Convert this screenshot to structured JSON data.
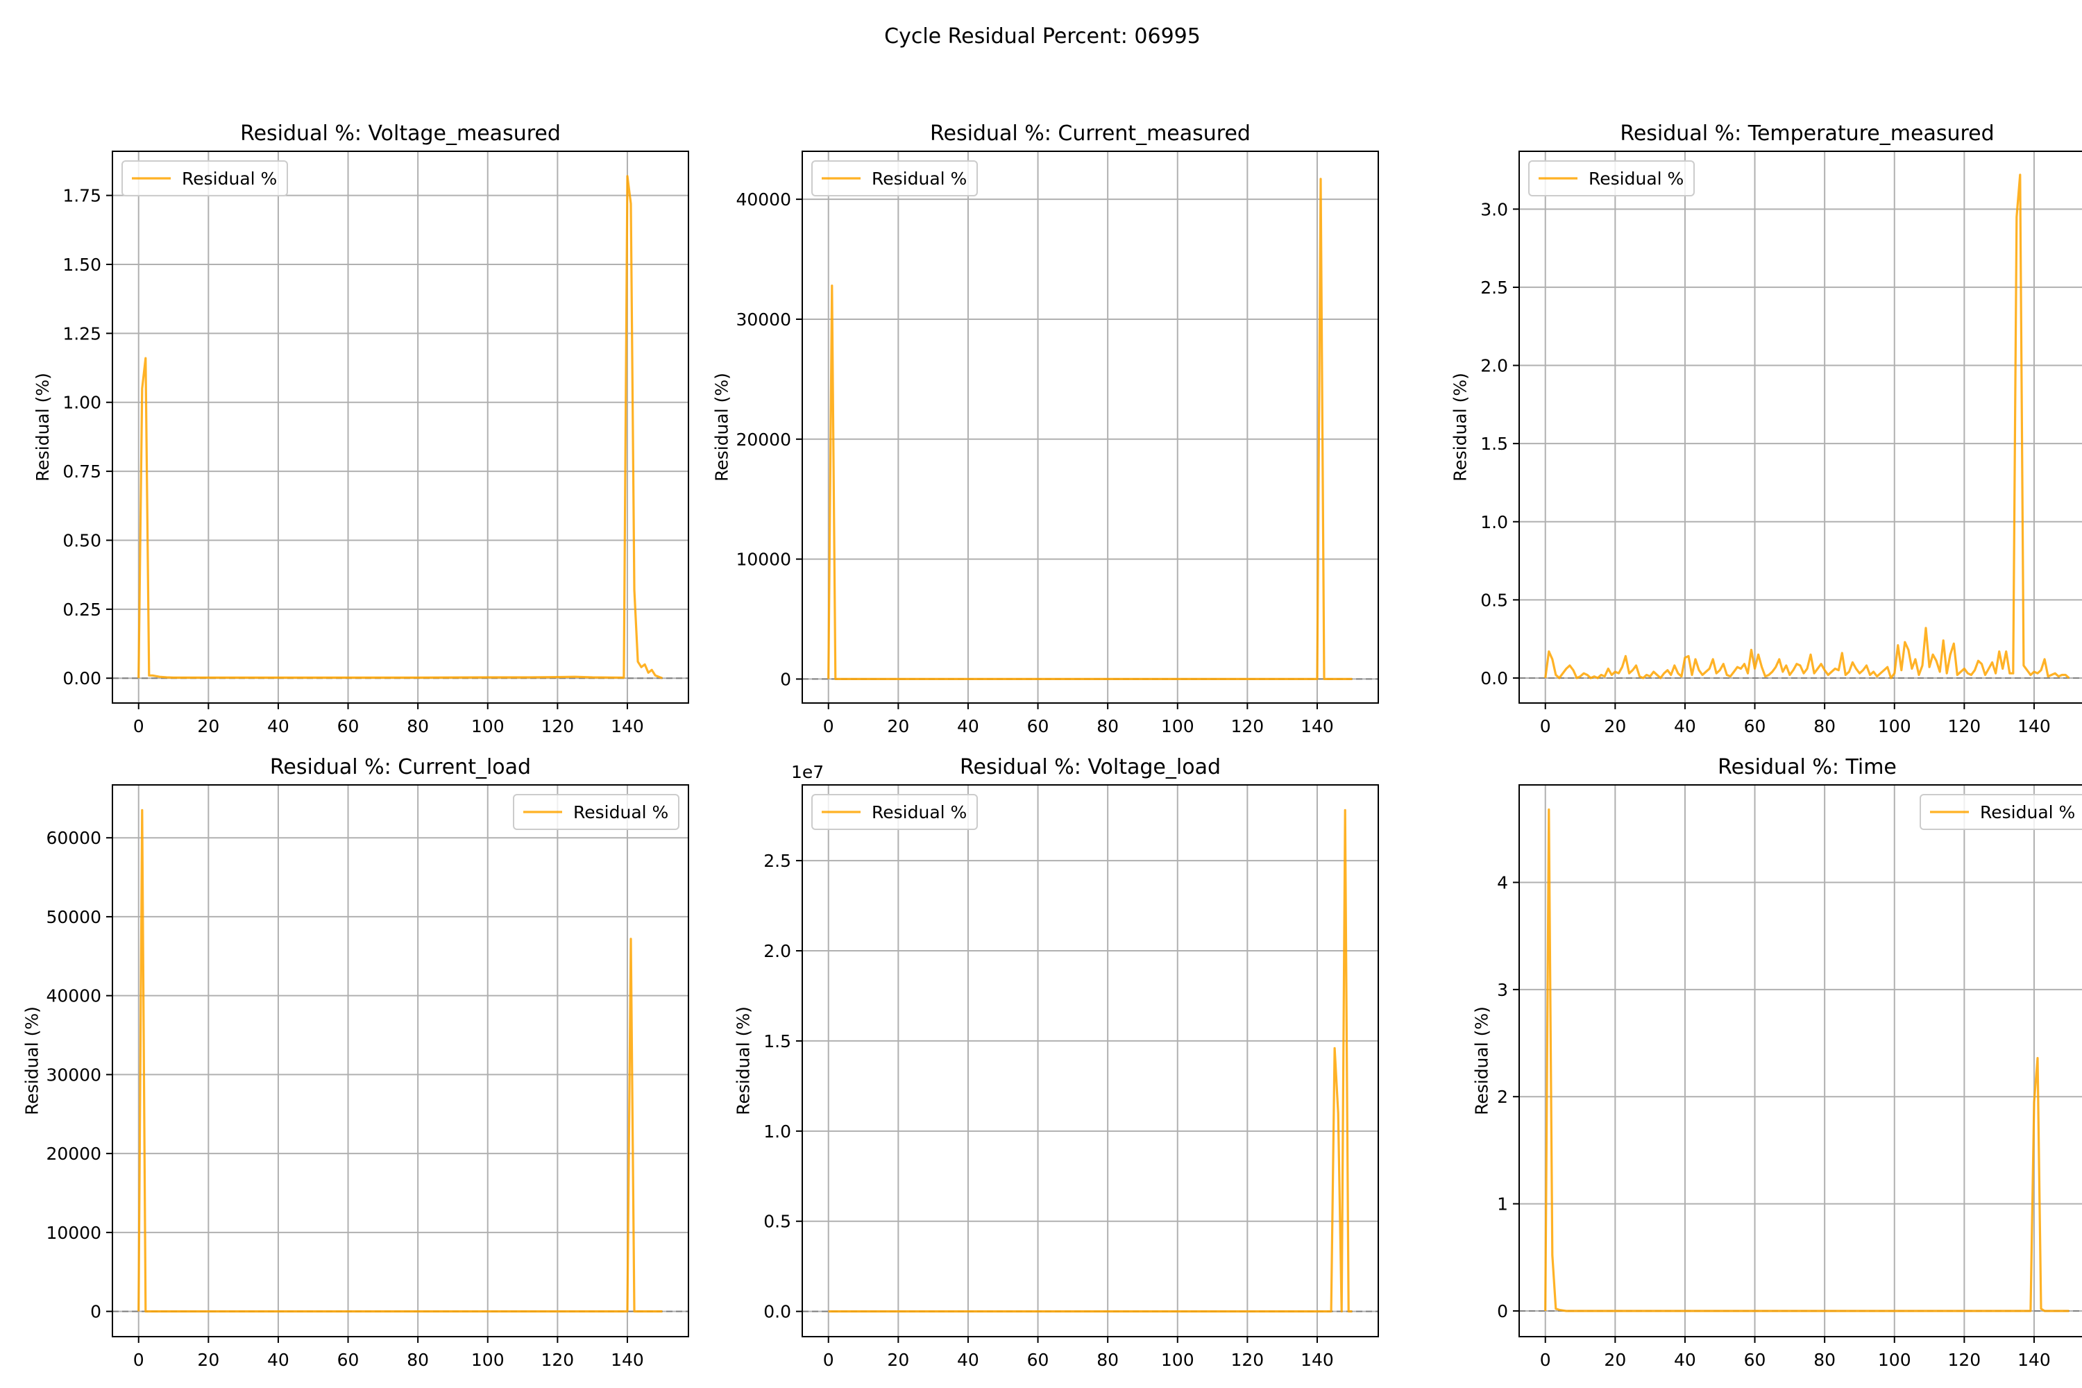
{
  "figure": {
    "suptitle": "Cycle Residual Percent: 06995",
    "line_color": "#FFA500",
    "zero_line_color": "#808080",
    "grid_color": "#B0B0B0"
  },
  "chart_data": [
    {
      "type": "line",
      "title": "Residual %: Voltage_measured",
      "xlabel": "",
      "ylabel": "Residual (%)",
      "legend": "top-left",
      "grid": true,
      "xlim": [
        -7.5,
        157.5
      ],
      "ylim": [
        -0.09,
        1.91
      ],
      "x_ticks": [
        0,
        20,
        40,
        60,
        80,
        100,
        120,
        140
      ],
      "y_ticks": [
        0.0,
        0.25,
        0.5,
        0.75,
        1.0,
        1.25,
        1.5,
        1.75
      ],
      "y_tick_labels": [
        "0.00",
        "0.25",
        "0.50",
        "0.75",
        "1.00",
        "1.25",
        "1.50",
        "1.75"
      ],
      "y_offset_label": "",
      "series": [
        {
          "name": "Residual %",
          "x": [
            0,
            1,
            2,
            3,
            4,
            6,
            8,
            10,
            20,
            40,
            60,
            80,
            100,
            110,
            120,
            125,
            130,
            139,
            140,
            141,
            142,
            143,
            144,
            145,
            146,
            147,
            148,
            149,
            150
          ],
          "y": [
            0.0,
            1.05,
            1.16,
            0.01,
            0.01,
            0.005,
            0.003,
            0.002,
            0.002,
            0.002,
            0.002,
            0.002,
            0.003,
            0.003,
            0.004,
            0.005,
            0.003,
            0.002,
            1.82,
            1.72,
            0.32,
            0.06,
            0.04,
            0.05,
            0.02,
            0.03,
            0.01,
            0.005,
            0.0
          ]
        }
      ]
    },
    {
      "type": "line",
      "title": "Residual %: Current_measured",
      "xlabel": "",
      "ylabel": "Residual (%)",
      "legend": "top-left",
      "grid": true,
      "xlim": [
        -7.5,
        157.5
      ],
      "ylim": [
        -2000,
        44000
      ],
      "x_ticks": [
        0,
        20,
        40,
        60,
        80,
        100,
        120,
        140
      ],
      "y_ticks": [
        0,
        10000,
        20000,
        30000,
        40000
      ],
      "y_tick_labels": [
        "0",
        "10000",
        "20000",
        "30000",
        "40000"
      ],
      "y_offset_label": "",
      "series": [
        {
          "name": "Residual %",
          "x": [
            0,
            1,
            2,
            3,
            10,
            40,
            80,
            120,
            140,
            141,
            142,
            143,
            145,
            150
          ],
          "y": [
            0,
            32800,
            0,
            0,
            0,
            0,
            0,
            0,
            0,
            41700,
            0,
            0,
            0,
            0
          ]
        }
      ]
    },
    {
      "type": "line",
      "title": "Residual %: Temperature_measured",
      "xlabel": "",
      "ylabel": "Residual (%)",
      "legend": "top-left",
      "grid": true,
      "xlim": [
        -7.5,
        157.5
      ],
      "ylim": [
        -0.16,
        3.37
      ],
      "x_ticks": [
        0,
        20,
        40,
        60,
        80,
        100,
        120,
        140
      ],
      "y_ticks": [
        0.0,
        0.5,
        1.0,
        1.5,
        2.0,
        2.5,
        3.0
      ],
      "y_tick_labels": [
        "0.0",
        "0.5",
        "1.0",
        "1.5",
        "2.0",
        "2.5",
        "3.0"
      ],
      "y_offset_label": "",
      "series": [
        {
          "name": "Residual %",
          "x": [
            0,
            1,
            2,
            3,
            4,
            5,
            6,
            7,
            8,
            9,
            10,
            11,
            12,
            13,
            14,
            15,
            16,
            17,
            18,
            19,
            20,
            21,
            22,
            23,
            24,
            25,
            26,
            27,
            28,
            29,
            30,
            31,
            32,
            33,
            34,
            35,
            36,
            37,
            38,
            39,
            40,
            41,
            42,
            43,
            44,
            45,
            46,
            47,
            48,
            49,
            50,
            51,
            52,
            53,
            54,
            55,
            56,
            57,
            58,
            59,
            60,
            61,
            62,
            63,
            64,
            65,
            66,
            67,
            68,
            69,
            70,
            71,
            72,
            73,
            74,
            75,
            76,
            77,
            78,
            79,
            80,
            81,
            82,
            83,
            84,
            85,
            86,
            87,
            88,
            89,
            90,
            91,
            92,
            93,
            94,
            95,
            96,
            97,
            98,
            99,
            100,
            101,
            102,
            103,
            104,
            105,
            106,
            107,
            108,
            109,
            110,
            111,
            112,
            113,
            114,
            115,
            116,
            117,
            118,
            119,
            120,
            121,
            122,
            123,
            124,
            125,
            126,
            127,
            128,
            129,
            130,
            131,
            132,
            133,
            134,
            135,
            136,
            137,
            138,
            139,
            140,
            141,
            142,
            143,
            144,
            145,
            146,
            147,
            148,
            149,
            150
          ],
          "y": [
            0.0,
            0.17,
            0.12,
            0.02,
            0.0,
            0.03,
            0.06,
            0.08,
            0.05,
            0.0,
            0.01,
            0.03,
            0.02,
            0.0,
            0.01,
            0.0,
            0.02,
            0.01,
            0.06,
            0.02,
            0.04,
            0.03,
            0.07,
            0.14,
            0.03,
            0.05,
            0.08,
            0.01,
            0.0,
            0.02,
            0.01,
            0.04,
            0.02,
            0.0,
            0.03,
            0.05,
            0.02,
            0.08,
            0.03,
            0.01,
            0.13,
            0.14,
            0.02,
            0.12,
            0.05,
            0.02,
            0.04,
            0.06,
            0.12,
            0.03,
            0.05,
            0.09,
            0.02,
            0.01,
            0.04,
            0.07,
            0.06,
            0.09,
            0.03,
            0.18,
            0.06,
            0.15,
            0.07,
            0.01,
            0.02,
            0.04,
            0.07,
            0.12,
            0.04,
            0.08,
            0.02,
            0.05,
            0.09,
            0.08,
            0.03,
            0.06,
            0.15,
            0.03,
            0.06,
            0.09,
            0.05,
            0.02,
            0.04,
            0.06,
            0.05,
            0.16,
            0.02,
            0.04,
            0.1,
            0.06,
            0.03,
            0.05,
            0.08,
            0.02,
            0.04,
            0.01,
            0.03,
            0.05,
            0.07,
            0.0,
            0.03,
            0.21,
            0.05,
            0.23,
            0.18,
            0.06,
            0.12,
            0.02,
            0.08,
            0.32,
            0.07,
            0.15,
            0.11,
            0.04,
            0.24,
            0.03,
            0.15,
            0.22,
            0.02,
            0.04,
            0.06,
            0.03,
            0.02,
            0.05,
            0.11,
            0.09,
            0.02,
            0.06,
            0.1,
            0.03,
            0.17,
            0.06,
            0.17,
            0.03,
            0.03,
            2.95,
            3.22,
            0.08,
            0.05,
            0.02,
            0.04,
            0.03,
            0.05,
            0.12,
            0.01,
            0.02,
            0.03,
            0.01,
            0.02,
            0.02,
            0.0
          ]
        }
      ]
    },
    {
      "type": "line",
      "title": "Residual %: Current_load",
      "xlabel": "",
      "ylabel": "Residual (%)",
      "legend": "top-right",
      "grid": true,
      "xlim": [
        -7.5,
        157.5
      ],
      "ylim": [
        -3200,
        66700
      ],
      "x_ticks": [
        0,
        20,
        40,
        60,
        80,
        100,
        120,
        140
      ],
      "y_ticks": [
        0,
        10000,
        20000,
        30000,
        40000,
        50000,
        60000
      ],
      "y_tick_labels": [
        "0",
        "10000",
        "20000",
        "30000",
        "40000",
        "50000",
        "60000"
      ],
      "y_offset_label": "",
      "series": [
        {
          "name": "Residual %",
          "x": [
            0,
            1,
            2,
            3,
            10,
            40,
            80,
            120,
            140,
            141,
            142,
            143,
            145,
            150
          ],
          "y": [
            0,
            63500,
            0,
            0,
            0,
            0,
            0,
            0,
            0,
            47200,
            0,
            0,
            0,
            0
          ]
        }
      ]
    },
    {
      "type": "line",
      "title": "Residual %: Voltage_load",
      "xlabel": "",
      "ylabel": "Residual (%)",
      "legend": "top-left",
      "grid": true,
      "xlim": [
        -7.5,
        157.5
      ],
      "ylim": [
        -1400000,
        29200000
      ],
      "x_ticks": [
        0,
        20,
        40,
        60,
        80,
        100,
        120,
        140
      ],
      "y_ticks": [
        0,
        5000000,
        10000000,
        15000000,
        20000000,
        25000000
      ],
      "y_tick_labels": [
        "0.0",
        "0.5",
        "1.0",
        "1.5",
        "2.0",
        "2.5"
      ],
      "y_offset_label": "1e7",
      "series": [
        {
          "name": "Residual %",
          "x": [
            0,
            10,
            40,
            80,
            120,
            144,
            145,
            146,
            147,
            148,
            149,
            150
          ],
          "y": [
            0,
            0,
            0,
            0,
            0,
            0,
            14600000,
            11000000,
            0,
            27800000,
            0,
            0
          ]
        }
      ]
    },
    {
      "type": "line",
      "title": "Residual %: Time",
      "xlabel": "",
      "ylabel": "Residual (%)",
      "legend": "top-right",
      "grid": true,
      "xlim": [
        -7.5,
        157.5
      ],
      "ylim": [
        -0.24,
        4.91
      ],
      "x_ticks": [
        0,
        20,
        40,
        60,
        80,
        100,
        120,
        140
      ],
      "y_ticks": [
        0,
        1,
        2,
        3,
        4
      ],
      "y_tick_labels": [
        "0",
        "1",
        "2",
        "3",
        "4"
      ],
      "y_offset_label": "",
      "series": [
        {
          "name": "Residual %",
          "x": [
            0,
            1,
            2,
            3,
            4,
            6,
            10,
            40,
            80,
            120,
            139,
            140,
            141,
            142,
            143,
            145,
            150
          ],
          "y": [
            0.0,
            4.68,
            0.52,
            0.02,
            0.01,
            0.0,
            0.0,
            0.0,
            0.0,
            0.0,
            0.0,
            1.95,
            2.36,
            0.02,
            0.0,
            0.0,
            0.0
          ]
        }
      ]
    }
  ]
}
